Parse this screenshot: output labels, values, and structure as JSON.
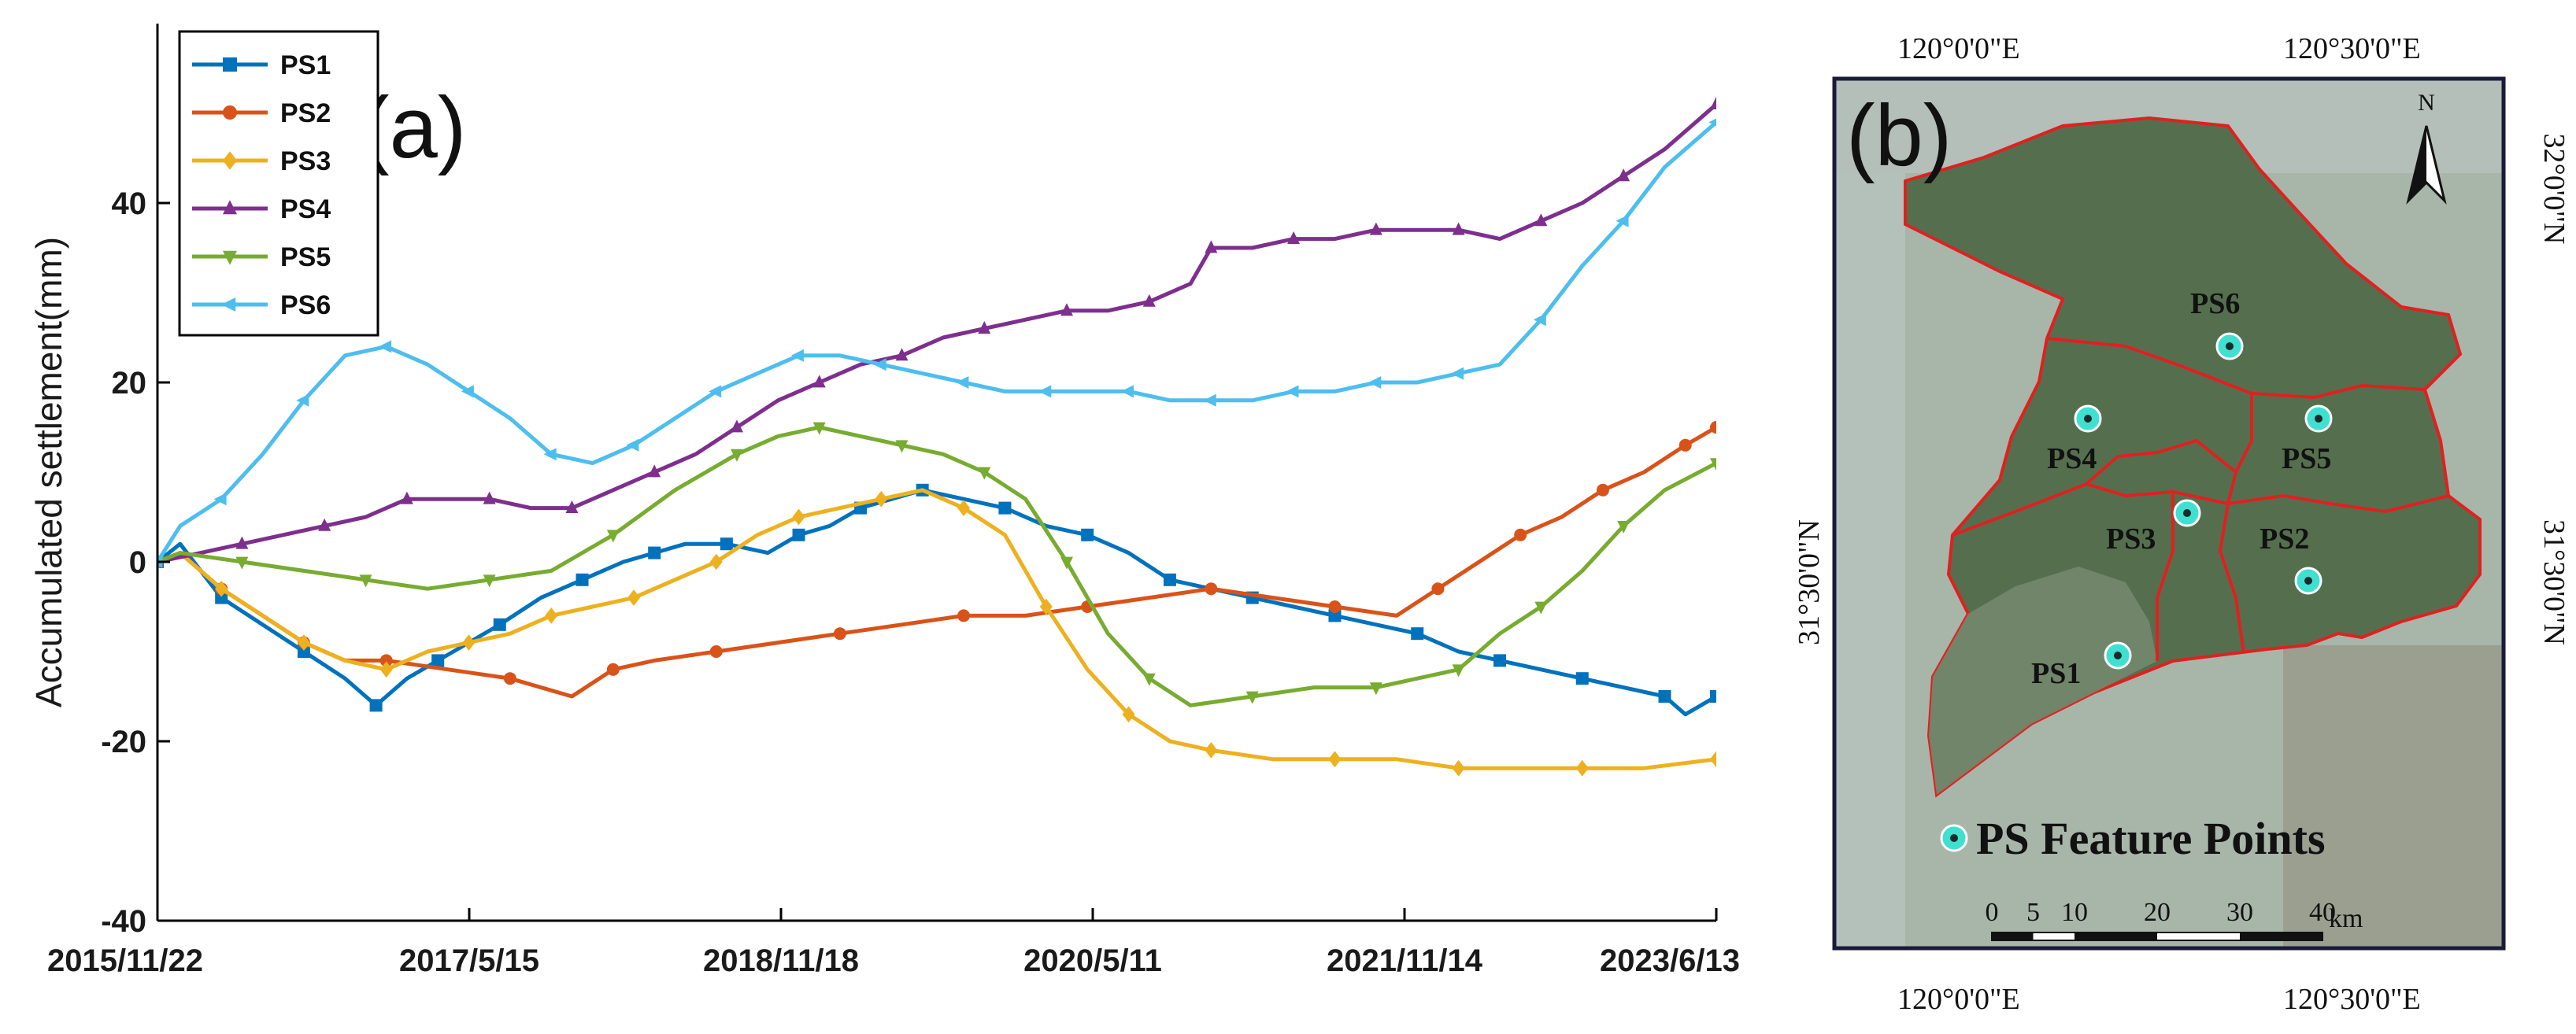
{
  "chart_data": {
    "type": "line",
    "panel_label": "(a)",
    "ylabel": "Accumulated settlement(mm)",
    "xlabel": "",
    "x_ticks": [
      "2015/11/22",
      "2017/5/15",
      "2018/11/18",
      "2020/5/11",
      "2021/11/14",
      "2023/6/13"
    ],
    "ylim": [
      -40,
      60
    ],
    "y_ticks": [
      -40,
      -20,
      0,
      20,
      40
    ],
    "grid": false,
    "legend_position": "top-left",
    "x_range_years": [
      2015.89,
      2023.45
    ],
    "series": [
      {
        "name": "PS1",
        "color": "#0072BD",
        "marker": "square",
        "x": [
          2015.89,
          2016.0,
          2016.2,
          2016.4,
          2016.6,
          2016.8,
          2016.95,
          2017.1,
          2017.25,
          2017.4,
          2017.55,
          2017.75,
          2017.95,
          2018.15,
          2018.3,
          2018.45,
          2018.65,
          2018.85,
          2019.0,
          2019.15,
          2019.3,
          2019.45,
          2019.6,
          2019.8,
          2020.0,
          2020.2,
          2020.4,
          2020.6,
          2020.8,
          2021.0,
          2021.2,
          2021.4,
          2021.6,
          2021.8,
          2022.0,
          2022.2,
          2022.4,
          2022.6,
          2022.8,
          2023.0,
          2023.2,
          2023.3,
          2023.45
        ],
        "y": [
          0,
          2,
          -4,
          -7,
          -10,
          -13,
          -16,
          -13,
          -11,
          -9,
          -7,
          -4,
          -2,
          0,
          1,
          2,
          2,
          1,
          3,
          4,
          6,
          7,
          8,
          7,
          6,
          4,
          3,
          1,
          -2,
          -3,
          -4,
          -5,
          -6,
          -7,
          -8,
          -10,
          -11,
          -12,
          -13,
          -14,
          -15,
          -17,
          -15
        ]
      },
      {
        "name": "PS2",
        "color": "#D95319",
        "marker": "circle",
        "x": [
          2015.89,
          2016.0,
          2016.2,
          2016.4,
          2016.6,
          2016.8,
          2017.0,
          2017.3,
          2017.6,
          2017.9,
          2018.1,
          2018.3,
          2018.6,
          2018.9,
          2019.2,
          2019.5,
          2019.8,
          2020.1,
          2020.4,
          2020.7,
          2021.0,
          2021.3,
          2021.6,
          2021.9,
          2022.1,
          2022.3,
          2022.5,
          2022.7,
          2022.9,
          2023.1,
          2023.3,
          2023.45
        ],
        "y": [
          0,
          1,
          -3,
          -6,
          -9,
          -11,
          -11,
          -12,
          -13,
          -15,
          -12,
          -11,
          -10,
          -9,
          -8,
          -7,
          -6,
          -6,
          -5,
          -4,
          -3,
          -4,
          -5,
          -6,
          -3,
          0,
          3,
          5,
          8,
          10,
          13,
          15
        ]
      },
      {
        "name": "PS3",
        "color": "#EDB120",
        "marker": "diamond",
        "x": [
          2015.89,
          2016.0,
          2016.2,
          2016.4,
          2016.6,
          2016.8,
          2017.0,
          2017.2,
          2017.4,
          2017.6,
          2017.8,
          2018.0,
          2018.2,
          2018.4,
          2018.6,
          2018.8,
          2019.0,
          2019.2,
          2019.4,
          2019.6,
          2019.8,
          2020.0,
          2020.2,
          2020.4,
          2020.6,
          2020.8,
          2021.0,
          2021.3,
          2021.6,
          2021.9,
          2022.2,
          2022.5,
          2022.8,
          2023.1,
          2023.45
        ],
        "y": [
          0,
          1,
          -3,
          -6,
          -9,
          -11,
          -12,
          -10,
          -9,
          -8,
          -6,
          -5,
          -4,
          -2,
          0,
          3,
          5,
          6,
          7,
          8,
          6,
          3,
          -5,
          -12,
          -17,
          -20,
          -21,
          -22,
          -22,
          -22,
          -23,
          -23,
          -23,
          -23,
          -22
        ]
      },
      {
        "name": "PS4",
        "color": "#7E2F8E",
        "marker": "triangle-up",
        "x": [
          2015.89,
          2016.1,
          2016.3,
          2016.5,
          2016.7,
          2016.9,
          2017.1,
          2017.3,
          2017.5,
          2017.7,
          2017.9,
          2018.1,
          2018.3,
          2018.5,
          2018.7,
          2018.9,
          2019.1,
          2019.3,
          2019.5,
          2019.7,
          2019.9,
          2020.1,
          2020.3,
          2020.5,
          2020.7,
          2020.9,
          2021.0,
          2021.2,
          2021.4,
          2021.6,
          2021.8,
          2022.0,
          2022.2,
          2022.4,
          2022.6,
          2022.8,
          2023.0,
          2023.2,
          2023.45
        ],
        "y": [
          0,
          1,
          2,
          3,
          4,
          5,
          7,
          7,
          7,
          6,
          6,
          8,
          10,
          12,
          15,
          18,
          20,
          22,
          23,
          25,
          26,
          27,
          28,
          28,
          29,
          31,
          35,
          35,
          36,
          36,
          37,
          37,
          37,
          36,
          38,
          40,
          43,
          46,
          51
        ]
      },
      {
        "name": "PS5",
        "color": "#77AC30",
        "marker": "triangle-down",
        "x": [
          2015.89,
          2016.0,
          2016.3,
          2016.6,
          2016.9,
          2017.2,
          2017.5,
          2017.8,
          2018.1,
          2018.4,
          2018.7,
          2018.9,
          2019.1,
          2019.3,
          2019.5,
          2019.7,
          2019.9,
          2020.1,
          2020.3,
          2020.5,
          2020.7,
          2020.9,
          2021.2,
          2021.5,
          2021.8,
          2022.0,
          2022.2,
          2022.4,
          2022.6,
          2022.8,
          2023.0,
          2023.2,
          2023.45
        ],
        "y": [
          0,
          1,
          0,
          -1,
          -2,
          -3,
          -2,
          -1,
          3,
          8,
          12,
          14,
          15,
          14,
          13,
          12,
          10,
          7,
          0,
          -8,
          -13,
          -16,
          -15,
          -14,
          -14,
          -13,
          -12,
          -8,
          -5,
          -1,
          4,
          8,
          11
        ]
      },
      {
        "name": "PS6",
        "color": "#4DBEEE",
        "marker": "triangle-left",
        "x": [
          2015.89,
          2016.0,
          2016.2,
          2016.4,
          2016.6,
          2016.8,
          2017.0,
          2017.2,
          2017.4,
          2017.6,
          2017.8,
          2018.0,
          2018.2,
          2018.4,
          2018.6,
          2018.8,
          2019.0,
          2019.2,
          2019.4,
          2019.6,
          2019.8,
          2020.0,
          2020.2,
          2020.4,
          2020.6,
          2020.8,
          2021.0,
          2021.2,
          2021.4,
          2021.6,
          2021.8,
          2022.0,
          2022.2,
          2022.4,
          2022.6,
          2022.8,
          2023.0,
          2023.2,
          2023.45
        ],
        "y": [
          0,
          4,
          7,
          12,
          18,
          23,
          24,
          22,
          19,
          16,
          12,
          11,
          13,
          16,
          19,
          21,
          23,
          23,
          22,
          21,
          20,
          19,
          19,
          19,
          19,
          18,
          18,
          18,
          19,
          19,
          20,
          20,
          21,
          22,
          27,
          33,
          38,
          44,
          49
        ]
      }
    ]
  },
  "map": {
    "panel_label": "(b)",
    "top_left_coord": "120°0'0\"E",
    "top_right_coord": "120°30'0\"E",
    "bottom_left_coord": "120°0'0\"E",
    "bottom_right_coord": "120°30'0\"E",
    "right_top_coord": "32°0'0\"N",
    "right_mid_coord": "31°30'0\"N",
    "left_mid_coord": "31°30'0\"N",
    "north_label": "N",
    "points": [
      {
        "label": "PS6"
      },
      {
        "label": "PS4"
      },
      {
        "label": "PS5"
      },
      {
        "label": "PS3"
      },
      {
        "label": "PS2"
      },
      {
        "label": "PS1"
      }
    ],
    "legend_label": "PS Feature Points",
    "scale_ticks": [
      "0",
      "5",
      "10",
      "20",
      "30",
      "40"
    ],
    "scale_unit": "km",
    "colors": {
      "boundary": "#e02020",
      "point": "#40e0d0",
      "frame": "#1a1a3a"
    }
  }
}
